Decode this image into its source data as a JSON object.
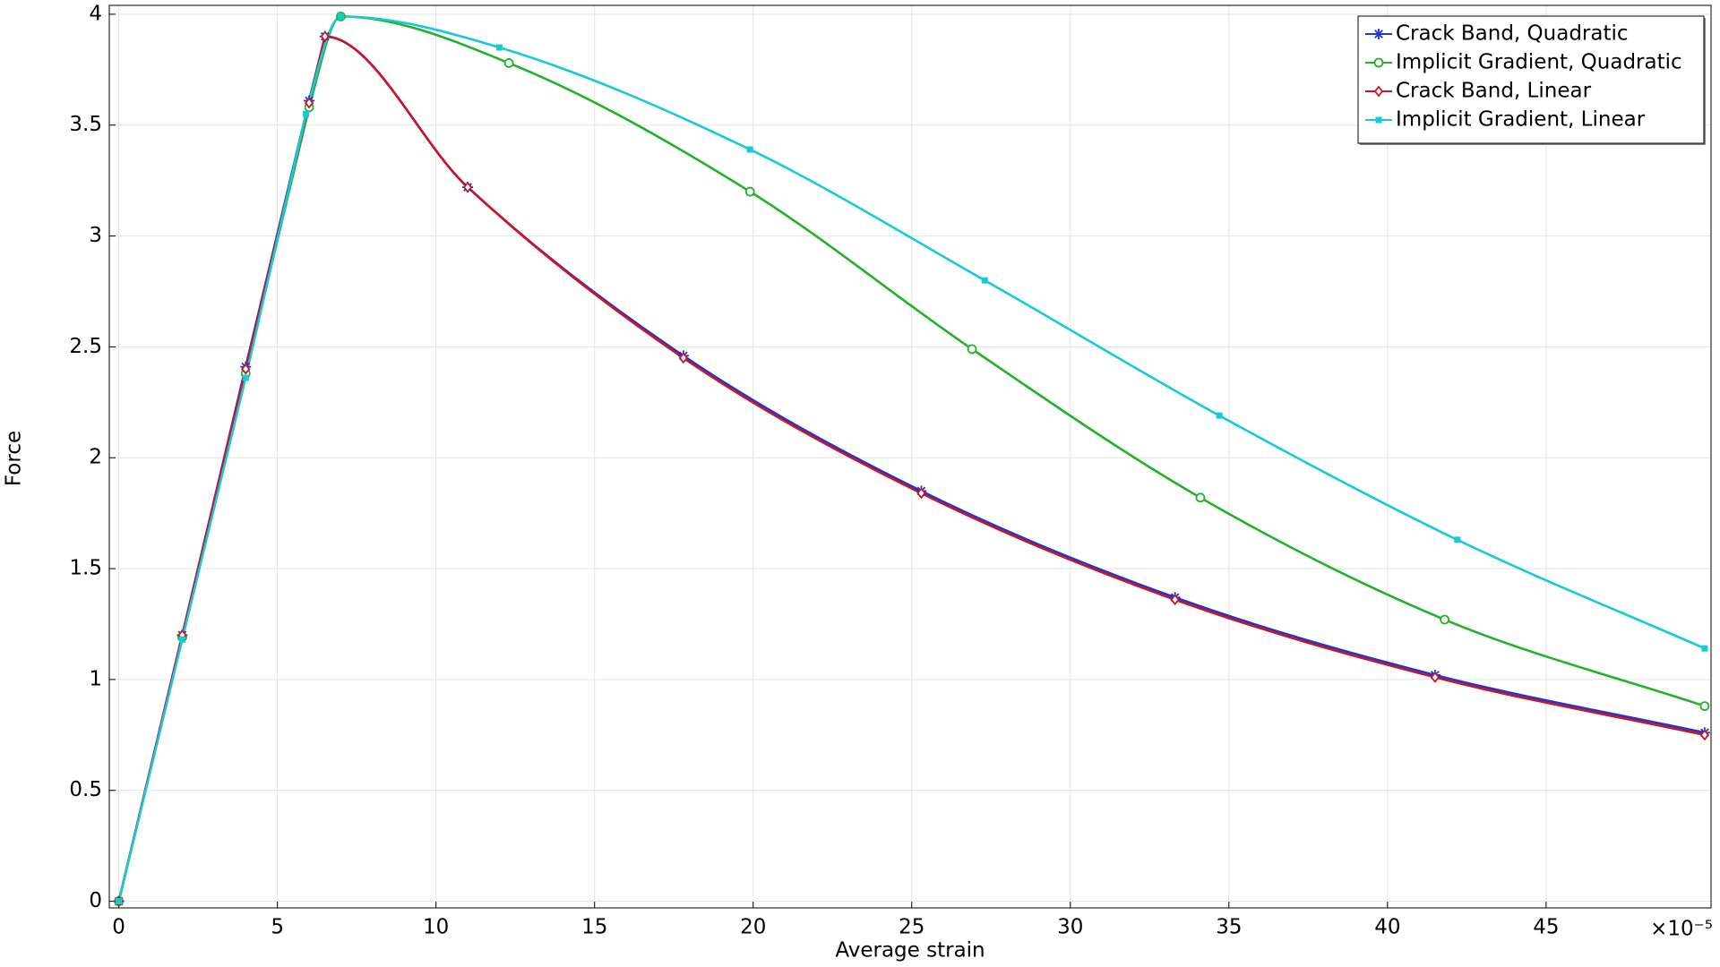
{
  "chart_data": {
    "type": "line",
    "x_label": "Average strain",
    "y_label": "Force",
    "x_multiplier": "×10⁻⁵",
    "xlim": [
      -0.3,
      50.2
    ],
    "ylim": [
      -0.03,
      4.04
    ],
    "xticks": [
      0,
      5,
      10,
      15,
      20,
      25,
      30,
      35,
      40,
      45
    ],
    "yticks": [
      0,
      0.5,
      1,
      1.5,
      2,
      2.5,
      3,
      3.5,
      4
    ],
    "grid": true,
    "legend": "upper right",
    "series": [
      {
        "name": "Crack Band, Quadratic",
        "color": "#1f35d6",
        "marker": "asterisk",
        "x": [
          0,
          2,
          4,
          6,
          6.5,
          11,
          17.8,
          25.3,
          33.3,
          41.5,
          50
        ],
        "values": [
          0,
          1.2,
          2.41,
          3.61,
          3.9,
          3.22,
          2.46,
          1.85,
          1.37,
          1.02,
          0.76
        ]
      },
      {
        "name": "Implicit Gradient, Quadratic",
        "color": "#22b22a",
        "marker": "circle",
        "x": [
          0,
          2,
          4,
          6,
          7,
          12.3,
          19.9,
          26.9,
          34.1,
          41.8,
          50
        ],
        "values": [
          0,
          1.19,
          2.38,
          3.58,
          3.99,
          3.78,
          3.2,
          2.49,
          1.82,
          1.27,
          0.88
        ]
      },
      {
        "name": "Crack Band, Linear",
        "color": "#cc1424",
        "marker": "diamond",
        "x": [
          0,
          2,
          4,
          6,
          6.5,
          11,
          17.8,
          25.3,
          33.3,
          41.5,
          50
        ],
        "values": [
          0,
          1.2,
          2.4,
          3.6,
          3.9,
          3.22,
          2.45,
          1.84,
          1.36,
          1.01,
          0.75
        ]
      },
      {
        "name": "Implicit Gradient, Linear",
        "color": "#15ccd6",
        "marker": "square",
        "x": [
          0,
          2,
          4,
          5.9,
          7,
          12,
          19.9,
          27.3,
          34.7,
          42.2,
          50
        ],
        "values": [
          0,
          1.18,
          2.36,
          3.55,
          3.99,
          3.85,
          3.39,
          2.8,
          2.19,
          1.63,
          1.14
        ]
      }
    ]
  }
}
